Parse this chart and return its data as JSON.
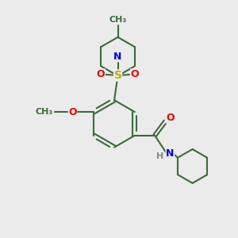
{
  "bg_color": "#ebebeb",
  "bond_color": "#3a6b3a",
  "bond_width": 1.5,
  "atom_colors": {
    "N": "#0000ee",
    "O": "#ee0000",
    "S": "#ccaa00",
    "C": "#3a6b3a",
    "H": "#888888"
  },
  "font_size": 9
}
